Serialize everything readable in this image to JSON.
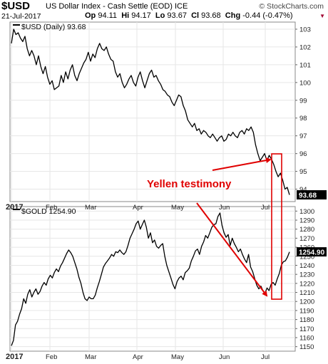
{
  "header": {
    "symbol": "$USD",
    "description": "US Dollar Index - Cash Settle (EOD)",
    "exchange": "ICE",
    "date": "21-Jul-2017",
    "open_label": "Op",
    "open": "94.11",
    "high_label": "Hi",
    "high": "94.17",
    "low_label": "Lo",
    "low": "93.67",
    "close_label": "Cl",
    "close": "93.68",
    "chg_label": "Chg",
    "chg": "-0.44 (-0.47%)",
    "brand": "© StockCharts.com"
  },
  "colors": {
    "line": "#000000",
    "annotation": "#e00000",
    "grid": "#e6e6e6",
    "last_badge": "#000000"
  },
  "chart_data": [
    {
      "type": "line",
      "legend": "$USD (Daily) 93.68",
      "last_value_label": "93.68",
      "x_ticks": [
        "2017",
        "Feb",
        "Mar",
        "Apr",
        "May",
        "Jun",
        "Jul"
      ],
      "ylim": [
        93.3,
        103.4
      ],
      "yticks": [
        94,
        95,
        96,
        97,
        98,
        99,
        100,
        101,
        102,
        103
      ],
      "grid": true,
      "series": [
        {
          "values": [
            102.2,
            103.0,
            102.7,
            102.8,
            102.5,
            102.3,
            102.6,
            101.9,
            101.5,
            101.8,
            101.5,
            101.0,
            101.5,
            100.9,
            100.5,
            100.9,
            100.3,
            99.9,
            100.1,
            99.6,
            99.7,
            99.8,
            100.4,
            100.0,
            100.6,
            100.2,
            100.7,
            101.0,
            100.4,
            100.1,
            100.5,
            100.8,
            101.1,
            101.3,
            101.7,
            101.2,
            101.6,
            101.4,
            101.9,
            102.2,
            101.9,
            101.8,
            102.0,
            101.6,
            101.3,
            101.2,
            100.6,
            100.3,
            100.5,
            100.0,
            99.7,
            99.9,
            100.2,
            100.4,
            100.0,
            99.8,
            100.3,
            100.6,
            100.1,
            99.7,
            100.1,
            100.5,
            100.7,
            100.3,
            100.4,
            100.1,
            99.9,
            99.6,
            99.5,
            99.3,
            99.2,
            98.9,
            98.7,
            99.0,
            99.3,
            99.2,
            98.7,
            98.4,
            97.9,
            97.7,
            97.5,
            97.7,
            97.3,
            97.4,
            97.1,
            97.3,
            97.2,
            97.0,
            96.9,
            97.1,
            96.9,
            96.7,
            96.9,
            97.0,
            96.7,
            96.8,
            97.1,
            97.0,
            97.2,
            97.0,
            96.9,
            97.2,
            97.3,
            97.1,
            97.4,
            97.3,
            97.5,
            97.2,
            96.5,
            96.0,
            95.6,
            95.8,
            96.0,
            95.6,
            95.9,
            95.7,
            95.4,
            95.0,
            94.7,
            94.9,
            94.5,
            94.0,
            94.1,
            93.68
          ]
        }
      ]
    },
    {
      "type": "line",
      "legend": "$GOLD 1254.90",
      "last_value_label": "1254.90",
      "x_ticks": [
        "2017",
        "Feb",
        "Mar",
        "Apr",
        "May",
        "Jun",
        "Jul"
      ],
      "ylim": [
        1145,
        1305
      ],
      "yticks": [
        1150,
        1160,
        1170,
        1180,
        1190,
        1200,
        1210,
        1220,
        1230,
        1240,
        1250,
        1260,
        1270,
        1280,
        1290,
        1300
      ],
      "grid": true,
      "series": [
        {
          "values": [
            1151,
            1157,
            1174,
            1178,
            1186,
            1192,
            1203,
            1198,
            1208,
            1213,
            1205,
            1210,
            1214,
            1208,
            1211,
            1217,
            1221,
            1218,
            1225,
            1229,
            1226,
            1232,
            1236,
            1233,
            1239,
            1243,
            1248,
            1253,
            1257,
            1254,
            1250,
            1243,
            1236,
            1227,
            1220,
            1210,
            1203,
            1201,
            1205,
            1203,
            1203,
            1207,
            1215,
            1222,
            1230,
            1238,
            1242,
            1245,
            1248,
            1252,
            1250,
            1255,
            1254,
            1257,
            1254,
            1252,
            1255,
            1262,
            1270,
            1275,
            1280,
            1286,
            1289,
            1280,
            1285,
            1290,
            1282,
            1270,
            1276,
            1265,
            1268,
            1261,
            1259,
            1262,
            1264,
            1250,
            1240,
            1233,
            1226,
            1219,
            1214,
            1222,
            1226,
            1228,
            1224,
            1232,
            1234,
            1237,
            1245,
            1250,
            1256,
            1258,
            1252,
            1261,
            1266,
            1273,
            1270,
            1276,
            1282,
            1285,
            1286,
            1294,
            1298,
            1284,
            1276,
            1271,
            1274,
            1262,
            1270,
            1264,
            1260,
            1255,
            1258,
            1252,
            1247,
            1243,
            1252,
            1238,
            1233,
            1225,
            1218,
            1214,
            1217,
            1212,
            1209,
            1215,
            1212,
            1219,
            1221,
            1218,
            1225,
            1231,
            1240,
            1244,
            1245,
            1249,
            1254.9
          ]
        }
      ]
    }
  ],
  "annotations": {
    "text": "Yellen testimony"
  }
}
